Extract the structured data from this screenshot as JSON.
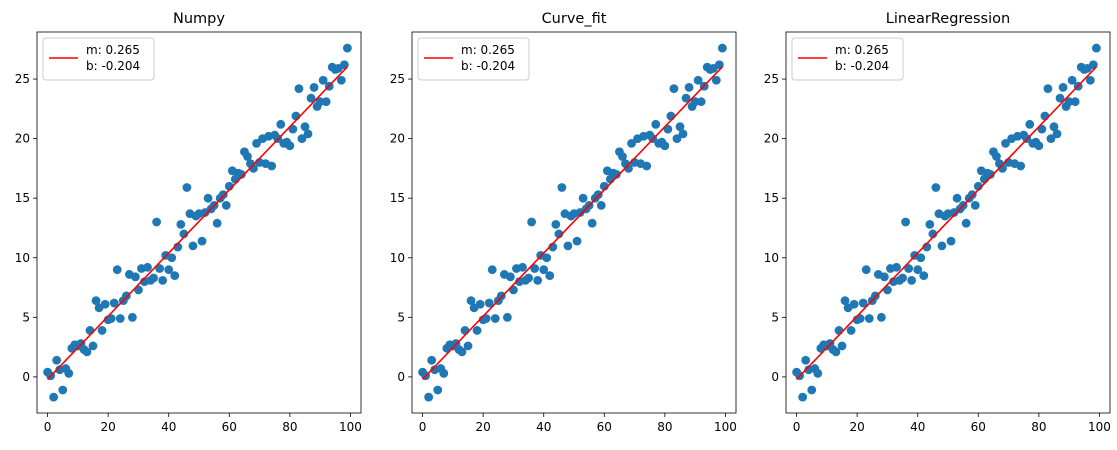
{
  "colors": {
    "points": "#1f77b4",
    "fit_line": "#ff0000",
    "legend_border": "#cccccc"
  },
  "chart_data": [
    {
      "type": "scatter",
      "title": "Numpy",
      "legend": {
        "placement": "top-left",
        "lines": [
          "m: 0.265",
          "b: -0.204"
        ]
      },
      "xlim": [
        -3.5,
        103.5
      ],
      "ylim": [
        -3.03,
        28.95
      ],
      "xticks": [
        0,
        20,
        40,
        60,
        80,
        100
      ],
      "yticks": [
        0,
        5,
        10,
        15,
        20,
        25
      ],
      "series": [
        {
          "type": "scatter",
          "x": [
            0,
            1,
            2,
            3,
            4,
            5,
            6,
            7,
            8,
            9,
            10,
            11,
            12,
            13,
            14,
            15,
            16,
            17,
            18,
            19,
            20,
            21,
            22,
            23,
            24,
            25,
            26,
            27,
            28,
            29,
            30,
            31,
            32,
            33,
            34,
            35,
            36,
            37,
            38,
            39,
            40,
            41,
            42,
            43,
            44,
            45,
            46,
            47,
            48,
            49,
            50,
            51,
            52,
            53,
            54,
            55,
            56,
            57,
            58,
            59,
            60,
            61,
            62,
            63,
            64,
            65,
            66,
            67,
            68,
            69,
            70,
            71,
            72,
            73,
            74,
            75,
            76,
            77,
            78,
            79,
            80,
            81,
            82,
            83,
            84,
            85,
            86,
            87,
            88,
            89,
            90,
            91,
            92,
            93,
            94,
            95,
            96,
            97,
            98,
            99
          ],
          "y": [
            0.4,
            0.1,
            -1.7,
            1.4,
            0.6,
            -1.1,
            0.7,
            0.3,
            2.4,
            2.7,
            2.6,
            2.8,
            2.3,
            2.1,
            3.9,
            2.6,
            6.4,
            5.8,
            3.9,
            6.1,
            4.8,
            4.9,
            6.2,
            9.0,
            4.9,
            6.4,
            6.8,
            8.6,
            5.0,
            8.4,
            7.3,
            9.1,
            8.0,
            9.2,
            8.1,
            8.3,
            13.0,
            9.1,
            8.1,
            10.2,
            9.0,
            10.0,
            8.5,
            10.9,
            12.8,
            12.0,
            15.9,
            13.7,
            11.0,
            13.5,
            13.7,
            11.4,
            13.8,
            15.0,
            14.1,
            14.4,
            12.9,
            15.0,
            15.3,
            14.4,
            16.0,
            17.3,
            16.6,
            17.1,
            17.0,
            18.9,
            18.5,
            17.9,
            17.5,
            19.6,
            18.0,
            20.0,
            17.9,
            20.2,
            17.7,
            20.3,
            20.0,
            21.2,
            19.6,
            19.7,
            19.4,
            20.8,
            21.9,
            24.2,
            20.0,
            21.0,
            20.4,
            23.4,
            24.3,
            22.7,
            23.1,
            24.9,
            23.1,
            24.4,
            26.0,
            25.8,
            25.9,
            24.9,
            26.2,
            27.6
          ]
        },
        {
          "type": "line",
          "x": [
            0,
            99
          ],
          "y": [
            -0.204,
            26.031
          ]
        }
      ]
    },
    {
      "type": "scatter",
      "title": "Curve_fit",
      "legend": {
        "placement": "top-left",
        "lines": [
          "m: 0.265",
          "b: -0.204"
        ]
      },
      "xlim": [
        -3.5,
        103.5
      ],
      "ylim": [
        -3.03,
        28.95
      ],
      "xticks": [
        0,
        20,
        40,
        60,
        80,
        100
      ],
      "yticks": [
        0,
        5,
        10,
        15,
        20,
        25
      ],
      "series": [
        {
          "type": "scatter",
          "x": [
            0,
            1,
            2,
            3,
            4,
            5,
            6,
            7,
            8,
            9,
            10,
            11,
            12,
            13,
            14,
            15,
            16,
            17,
            18,
            19,
            20,
            21,
            22,
            23,
            24,
            25,
            26,
            27,
            28,
            29,
            30,
            31,
            32,
            33,
            34,
            35,
            36,
            37,
            38,
            39,
            40,
            41,
            42,
            43,
            44,
            45,
            46,
            47,
            48,
            49,
            50,
            51,
            52,
            53,
            54,
            55,
            56,
            57,
            58,
            59,
            60,
            61,
            62,
            63,
            64,
            65,
            66,
            67,
            68,
            69,
            70,
            71,
            72,
            73,
            74,
            75,
            76,
            77,
            78,
            79,
            80,
            81,
            82,
            83,
            84,
            85,
            86,
            87,
            88,
            89,
            90,
            91,
            92,
            93,
            94,
            95,
            96,
            97,
            98,
            99
          ],
          "y": [
            0.4,
            0.1,
            -1.7,
            1.4,
            0.6,
            -1.1,
            0.7,
            0.3,
            2.4,
            2.7,
            2.6,
            2.8,
            2.3,
            2.1,
            3.9,
            2.6,
            6.4,
            5.8,
            3.9,
            6.1,
            4.8,
            4.9,
            6.2,
            9.0,
            4.9,
            6.4,
            6.8,
            8.6,
            5.0,
            8.4,
            7.3,
            9.1,
            8.0,
            9.2,
            8.1,
            8.3,
            13.0,
            9.1,
            8.1,
            10.2,
            9.0,
            10.0,
            8.5,
            10.9,
            12.8,
            12.0,
            15.9,
            13.7,
            11.0,
            13.5,
            13.7,
            11.4,
            13.8,
            15.0,
            14.1,
            14.4,
            12.9,
            15.0,
            15.3,
            14.4,
            16.0,
            17.3,
            16.6,
            17.1,
            17.0,
            18.9,
            18.5,
            17.9,
            17.5,
            19.6,
            18.0,
            20.0,
            17.9,
            20.2,
            17.7,
            20.3,
            20.0,
            21.2,
            19.6,
            19.7,
            19.4,
            20.8,
            21.9,
            24.2,
            20.0,
            21.0,
            20.4,
            23.4,
            24.3,
            22.7,
            23.1,
            24.9,
            23.1,
            24.4,
            26.0,
            25.8,
            25.9,
            24.9,
            26.2,
            27.6
          ]
        },
        {
          "type": "line",
          "x": [
            0,
            99
          ],
          "y": [
            -0.204,
            26.031
          ]
        }
      ]
    },
    {
      "type": "scatter",
      "title": "LinearRegression",
      "legend": {
        "placement": "top-left",
        "lines": [
          "m: 0.265",
          "b: -0.204"
        ]
      },
      "xlim": [
        -3.5,
        103.5
      ],
      "ylim": [
        -3.03,
        28.95
      ],
      "xticks": [
        0,
        20,
        40,
        60,
        80,
        100
      ],
      "yticks": [
        0,
        5,
        10,
        15,
        20,
        25
      ],
      "series": [
        {
          "type": "scatter",
          "x": [
            0,
            1,
            2,
            3,
            4,
            5,
            6,
            7,
            8,
            9,
            10,
            11,
            12,
            13,
            14,
            15,
            16,
            17,
            18,
            19,
            20,
            21,
            22,
            23,
            24,
            25,
            26,
            27,
            28,
            29,
            30,
            31,
            32,
            33,
            34,
            35,
            36,
            37,
            38,
            39,
            40,
            41,
            42,
            43,
            44,
            45,
            46,
            47,
            48,
            49,
            50,
            51,
            52,
            53,
            54,
            55,
            56,
            57,
            58,
            59,
            60,
            61,
            62,
            63,
            64,
            65,
            66,
            67,
            68,
            69,
            70,
            71,
            72,
            73,
            74,
            75,
            76,
            77,
            78,
            79,
            80,
            81,
            82,
            83,
            84,
            85,
            86,
            87,
            88,
            89,
            90,
            91,
            92,
            93,
            94,
            95,
            96,
            97,
            98,
            99
          ],
          "y": [
            0.4,
            0.1,
            -1.7,
            1.4,
            0.6,
            -1.1,
            0.7,
            0.3,
            2.4,
            2.7,
            2.6,
            2.8,
            2.3,
            2.1,
            3.9,
            2.6,
            6.4,
            5.8,
            3.9,
            6.1,
            4.8,
            4.9,
            6.2,
            9.0,
            4.9,
            6.4,
            6.8,
            8.6,
            5.0,
            8.4,
            7.3,
            9.1,
            8.0,
            9.2,
            8.1,
            8.3,
            13.0,
            9.1,
            8.1,
            10.2,
            9.0,
            10.0,
            8.5,
            10.9,
            12.8,
            12.0,
            15.9,
            13.7,
            11.0,
            13.5,
            13.7,
            11.4,
            13.8,
            15.0,
            14.1,
            14.4,
            12.9,
            15.0,
            15.3,
            14.4,
            16.0,
            17.3,
            16.6,
            17.1,
            17.0,
            18.9,
            18.5,
            17.9,
            17.5,
            19.6,
            18.0,
            20.0,
            17.9,
            20.2,
            17.7,
            20.3,
            20.0,
            21.2,
            19.6,
            19.7,
            19.4,
            20.8,
            21.9,
            24.2,
            20.0,
            21.0,
            20.4,
            23.4,
            24.3,
            22.7,
            23.1,
            24.9,
            23.1,
            24.4,
            26.0,
            25.8,
            25.9,
            24.9,
            26.2,
            27.6
          ]
        },
        {
          "type": "line",
          "x": [
            0,
            99
          ],
          "y": [
            -0.204,
            26.031
          ]
        }
      ]
    }
  ]
}
